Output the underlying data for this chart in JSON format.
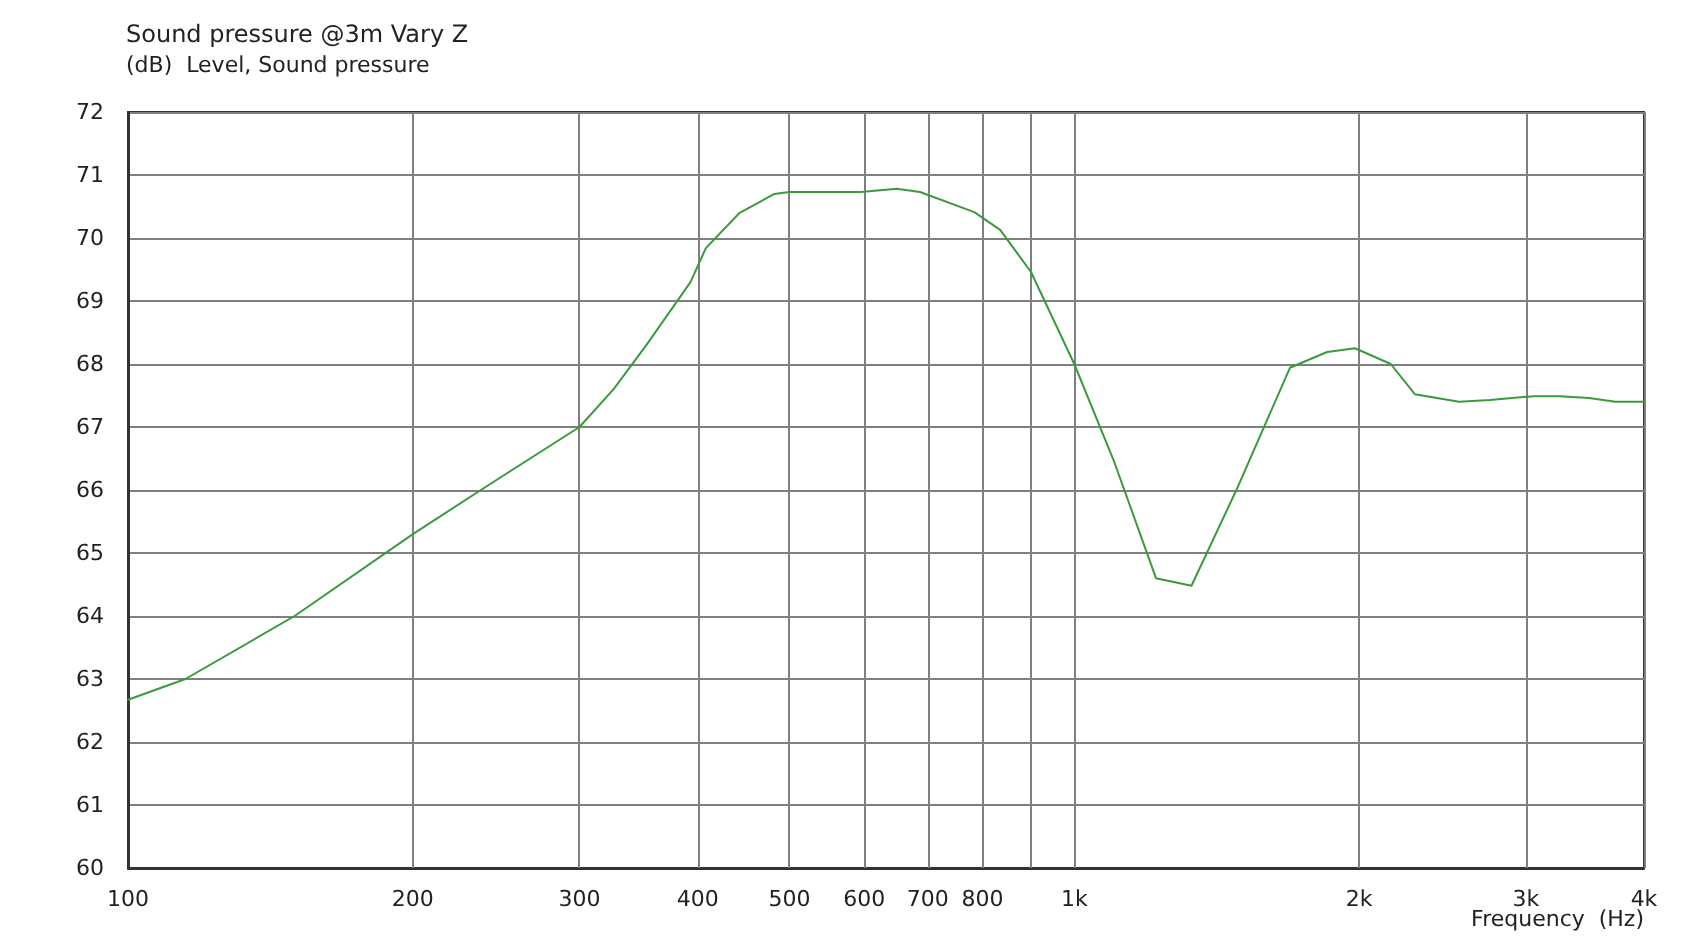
{
  "chart_data": {
    "type": "line",
    "title": "Sound pressure @3m Vary Z",
    "subtitle": "(dB)  Level, Sound pressure",
    "xlabel": "Frequency  (Hz)",
    "log": "x",
    "grid": true,
    "marker": "none",
    "line_style": "solid",
    "xlim": [
      100,
      4000
    ],
    "xticks": [
      100,
      200,
      300,
      400,
      500,
      600,
      700,
      800,
      {
        "value": 900,
        "label": null
      },
      {
        "value": 1000,
        "label": "1k"
      },
      {
        "value": 2000,
        "label": "2k"
      },
      {
        "value": 3000,
        "label": "3k"
      },
      {
        "value": 4000,
        "label": "4k"
      }
    ],
    "ylim": [
      60,
      72
    ],
    "yticks": [
      60,
      61,
      62,
      63,
      64,
      65,
      66,
      67,
      68,
      69,
      70,
      71,
      72
    ],
    "x": [
      100,
      115,
      150,
      200,
      236,
      300,
      326,
      353,
      393,
      408,
      443,
      482,
      500,
      595,
      649,
      687,
      784,
      835,
      900,
      1000,
      1100,
      1220,
      1330,
      1490,
      1690,
      1850,
      1980,
      2160,
      2290,
      2550,
      2750,
      3060,
      3260,
      3500,
      3730,
      4000
    ],
    "series": [
      {
        "color": "#3c9a3c",
        "values": [
          62.67,
          63.0,
          64.0,
          65.3,
          66.0,
          67.0,
          67.6,
          68.3,
          69.3,
          69.84,
          70.4,
          70.7,
          70.73,
          70.73,
          70.78,
          70.73,
          70.41,
          70.13,
          69.46,
          68.0,
          66.48,
          64.6,
          64.48,
          66.06,
          67.94,
          68.19,
          68.25,
          68.0,
          67.52,
          67.4,
          67.43,
          67.49,
          67.49,
          67.46,
          67.4,
          67.4
        ]
      }
    ]
  }
}
